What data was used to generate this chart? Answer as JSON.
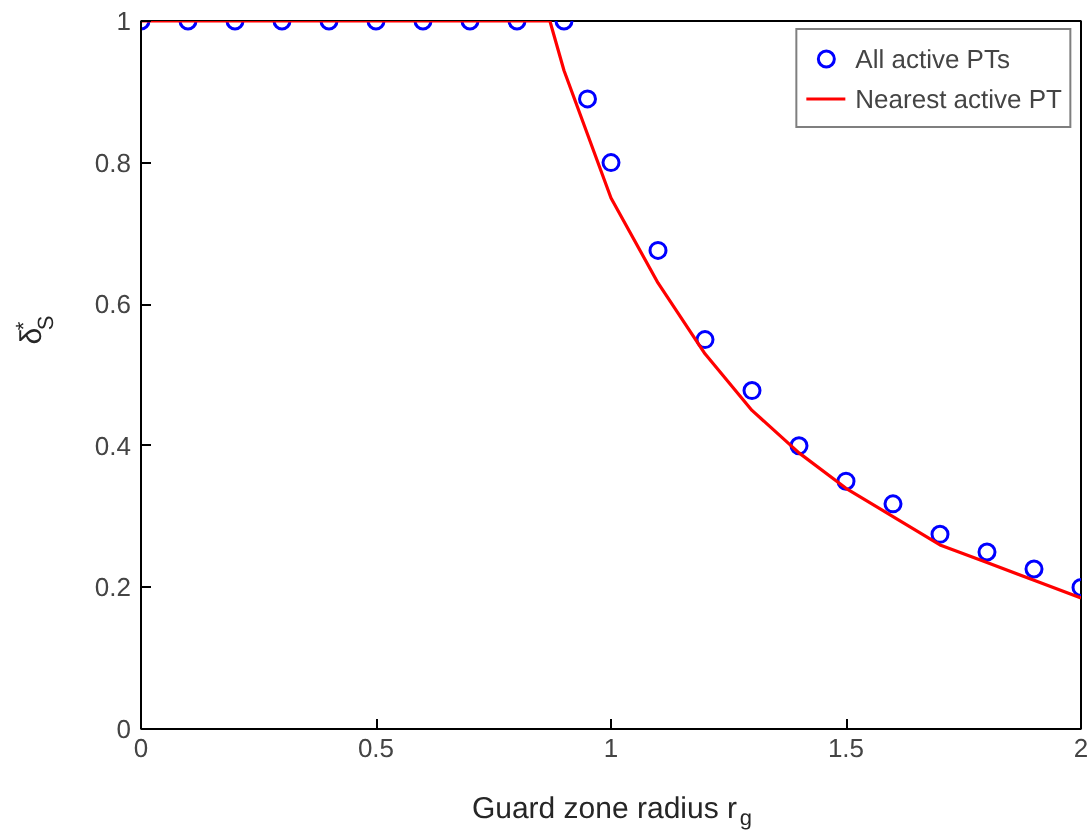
{
  "chart_data": {
    "type": "line",
    "xlabel": "Guard zone radius r$_{g}$",
    "ylabel": "δ$^{*}$$_{S}$",
    "xlim": [
      0,
      2
    ],
    "ylim": [
      0,
      1
    ],
    "xticks": [
      0,
      0.5,
      1,
      1.5,
      2
    ],
    "yticks": [
      0,
      0.2,
      0.4,
      0.6,
      0.8,
      1
    ],
    "grid": false,
    "legend": "top right",
    "series": [
      {
        "name": "All active PTs",
        "type": "scatter",
        "marker": "circle",
        "color": "#0000ff",
        "x": [
          0,
          0.1,
          0.2,
          0.3,
          0.4,
          0.5,
          0.6,
          0.7,
          0.8,
          0.9,
          0.95,
          1,
          1.1,
          1.2,
          1.3,
          1.4,
          1.5,
          1.6,
          1.7,
          1.8,
          1.9,
          2
        ],
        "values": [
          1,
          1,
          1,
          1,
          1,
          1,
          1,
          1,
          1,
          1,
          0.89,
          0.8,
          0.676,
          0.55,
          0.478,
          0.4,
          0.35,
          0.318,
          0.275,
          0.25,
          0.226,
          0.2
        ]
      },
      {
        "name": "Nearest active PT",
        "type": "line",
        "line_style": "solid",
        "color": "#ff0000",
        "x": [
          0,
          0.87,
          0.9,
          0.95,
          1,
          1.1,
          1.2,
          1.3,
          1.4,
          1.5,
          1.6,
          1.7,
          1.8,
          1.9,
          2
        ],
        "values": [
          1,
          1,
          0.93,
          0.84,
          0.75,
          0.63,
          0.53,
          0.45,
          0.39,
          0.34,
          0.3,
          0.26,
          0.235,
          0.21,
          0.185
        ]
      }
    ]
  }
}
